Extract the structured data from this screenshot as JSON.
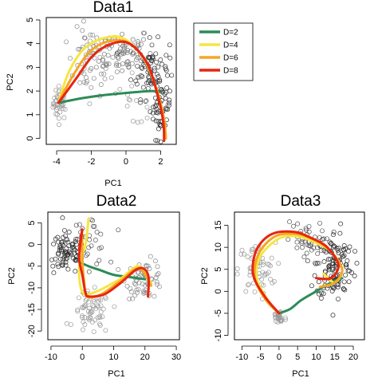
{
  "chart_data": [
    {
      "type": "scatter",
      "title": "Data1",
      "xlabel": "PC1",
      "ylabel": "PC2",
      "xlim": [
        -4.6,
        2.9
      ],
      "ylim": [
        -0.25,
        5.1
      ],
      "xticks": [
        "-4",
        "-2",
        "0",
        "2"
      ],
      "yticks": [
        "0",
        "1",
        "2",
        "3",
        "4",
        "5"
      ],
      "clusters": [
        {
          "cx": -3.8,
          "cy": 1.5,
          "sx": 0.2,
          "sy": 0.35,
          "n": 45,
          "shade": "#9a9a9a"
        },
        {
          "cx": -2.0,
          "cy": 3.2,
          "sx": 0.7,
          "sy": 0.7,
          "n": 55,
          "shade": "#8a8a8a"
        },
        {
          "cx": -0.3,
          "cy": 3.7,
          "sx": 0.9,
          "sy": 0.5,
          "n": 70,
          "shade": "#777777"
        },
        {
          "cx": 1.4,
          "cy": 2.9,
          "sx": 0.55,
          "sy": 0.6,
          "n": 70,
          "shade": "#3a3a3a"
        },
        {
          "cx": 2.0,
          "cy": 1.4,
          "sx": 0.3,
          "sy": 0.7,
          "n": 55,
          "shade": "#2a2a2a"
        },
        {
          "cx": 0.0,
          "cy": 1.6,
          "sx": 1.3,
          "sy": 0.5,
          "n": 20,
          "shade": "#999999"
        }
      ],
      "series": [
        {
          "name": "D=2",
          "color": "#2e8b57",
          "x": [
            -3.9,
            -2.5,
            -1.0,
            0.5,
            1.5,
            2.0
          ],
          "y": [
            1.5,
            1.7,
            1.85,
            1.95,
            2.0,
            1.95
          ]
        },
        {
          "name": "D=4",
          "color": "#f5e642",
          "x": [
            -3.9,
            -3.3,
            -2.4,
            -1.2,
            -0.1,
            1.0,
            1.7,
            2.1,
            2.3
          ],
          "y": [
            1.5,
            2.8,
            3.8,
            4.25,
            4.2,
            3.4,
            2.2,
            1.0,
            0.1
          ]
        },
        {
          "name": "D=6",
          "color": "#f5a623",
          "x": [
            -3.9,
            -3.1,
            -2.1,
            -1.0,
            0.1,
            1.1,
            1.8,
            2.2,
            2.3
          ],
          "y": [
            1.5,
            2.6,
            3.65,
            4.1,
            4.05,
            3.3,
            2.0,
            0.8,
            0.0
          ]
        },
        {
          "name": "D=8",
          "color": "#e8250f",
          "x": [
            -3.9,
            -2.9,
            -1.9,
            -0.8,
            0.2,
            1.2,
            1.8,
            2.15,
            2.2
          ],
          "y": [
            1.5,
            2.5,
            3.5,
            4.0,
            4.0,
            3.2,
            1.9,
            0.7,
            -0.1
          ]
        }
      ],
      "legend": {
        "placement": "right",
        "entries": [
          "D=2",
          "D=4",
          "D=6",
          "D=8"
        ]
      }
    },
    {
      "type": "scatter",
      "title": "Data2",
      "xlabel": "PC1",
      "ylabel": "PC2",
      "xlim": [
        -11,
        31
      ],
      "ylim": [
        -22,
        7.5
      ],
      "xticks": [
        "-10",
        "0",
        "10",
        "20",
        "30"
      ],
      "yticks": [
        "5",
        "0",
        "-5",
        "-10",
        "-15",
        "-20"
      ],
      "clusters": [
        {
          "cx": -5,
          "cy": -2,
          "sx": 3,
          "sy": 2.5,
          "n": 80,
          "shade": "#2a2a2a"
        },
        {
          "cx": 3,
          "cy": -16,
          "sx": 3,
          "sy": 2.5,
          "n": 60,
          "shade": "#9a9a9a"
        },
        {
          "cx": 20,
          "cy": -8,
          "sx": 3,
          "sy": 2.2,
          "n": 60,
          "shade": "#8a8a8a"
        },
        {
          "cx": 2,
          "cy": 1,
          "sx": 3,
          "sy": 3,
          "n": 30,
          "shade": "#555555"
        }
      ],
      "series": [
        {
          "name": "D=2",
          "color": "#2e8b57",
          "x": [
            -1,
            2,
            6,
            10,
            15,
            20
          ],
          "y": [
            -4,
            -5,
            -6,
            -7,
            -7.5,
            -8
          ]
        },
        {
          "name": "D=4",
          "color": "#f5e642",
          "x": [
            2,
            1,
            -1,
            0,
            4,
            12,
            18,
            22
          ],
          "y": [
            6,
            0,
            -5,
            -11,
            -11,
            -8,
            -5,
            -9
          ]
        },
        {
          "name": "D=6",
          "color": "#f5a623",
          "x": [
            0,
            0,
            0.5,
            1.5,
            6,
            12,
            18,
            22
          ],
          "y": [
            2,
            -3,
            -8,
            -12,
            -11.5,
            -8.5,
            -5.5,
            -9.5
          ]
        },
        {
          "name": "D=8",
          "color": "#e8250f",
          "x": [
            -1,
            0,
            -1,
            0,
            1,
            2,
            7,
            12,
            18,
            21,
            21
          ],
          "y": [
            -1,
            3.5,
            -3,
            -7,
            -11,
            -12,
            -11.5,
            -9,
            -5.5,
            -7,
            -12
          ]
        }
      ]
    },
    {
      "type": "scatter",
      "title": "Data3",
      "xlabel": "PC1",
      "ylabel": "PC2",
      "xlim": [
        -12,
        23
      ],
      "ylim": [
        -11,
        18
      ],
      "xticks": [
        "-10",
        "-5",
        "0",
        "5",
        "10",
        "15",
        "20"
      ],
      "yticks": [
        "15",
        "10",
        "5",
        "0",
        "-5",
        "-10"
      ],
      "clusters": [
        {
          "cx": -6,
          "cy": 5,
          "sx": 2.5,
          "sy": 3,
          "n": 60,
          "shade": "#9a9a9a"
        },
        {
          "cx": 0,
          "cy": -6,
          "sx": 1,
          "sy": 1,
          "n": 30,
          "shade": "#9a9a9a"
        },
        {
          "cx": 15,
          "cy": 6,
          "sx": 2.5,
          "sy": 4,
          "n": 120,
          "shade": "#2a2a2a"
        },
        {
          "cx": 7,
          "cy": 11,
          "sx": 2.5,
          "sy": 2.5,
          "n": 40,
          "shade": "#555555"
        }
      ],
      "series": [
        {
          "name": "D=2",
          "color": "#2e8b57",
          "x": [
            0,
            3,
            6,
            10,
            14,
            17
          ],
          "y": [
            -5,
            -4,
            -2,
            0,
            2,
            3
          ]
        },
        {
          "name": "D=4",
          "color": "#f5e642",
          "x": [
            0,
            -3,
            -6,
            -5,
            0,
            5,
            10,
            14,
            17,
            15,
            12
          ],
          "y": [
            -5,
            -2,
            3,
            8,
            12,
            12.5,
            11,
            9,
            5,
            2,
            4
          ]
        },
        {
          "name": "D=6",
          "color": "#f5a623",
          "x": [
            0,
            -3.5,
            -6.5,
            -5.5,
            -1,
            5,
            10,
            14,
            17,
            15,
            11
          ],
          "y": [
            -5,
            -2,
            3,
            8.5,
            12.5,
            13,
            11.5,
            9,
            5,
            2,
            1
          ]
        },
        {
          "name": "D=8",
          "color": "#e8250f",
          "x": [
            0,
            -4,
            -7,
            -6,
            -2,
            4,
            9,
            13,
            16,
            14,
            10
          ],
          "y": [
            -5,
            -1,
            4,
            9.5,
            13,
            13.5,
            12,
            10,
            6,
            3,
            3
          ]
        }
      ]
    }
  ]
}
